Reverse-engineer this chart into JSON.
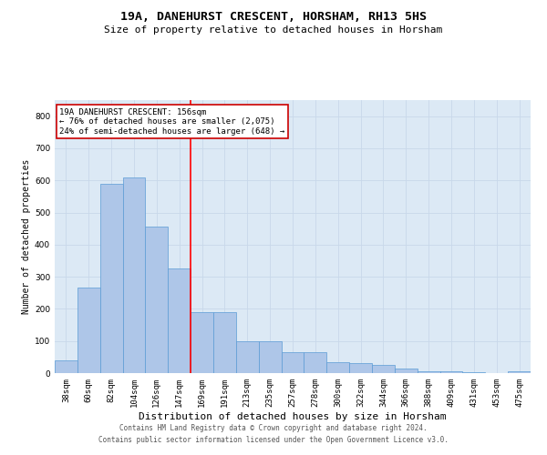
{
  "title": "19A, DANEHURST CRESCENT, HORSHAM, RH13 5HS",
  "subtitle": "Size of property relative to detached houses in Horsham",
  "xlabel": "Distribution of detached houses by size in Horsham",
  "ylabel": "Number of detached properties",
  "categories": [
    "38sqm",
    "60sqm",
    "82sqm",
    "104sqm",
    "126sqm",
    "147sqm",
    "169sqm",
    "191sqm",
    "213sqm",
    "235sqm",
    "257sqm",
    "278sqm",
    "300sqm",
    "322sqm",
    "344sqm",
    "366sqm",
    "388sqm",
    "409sqm",
    "431sqm",
    "453sqm",
    "475sqm"
  ],
  "values": [
    40,
    265,
    590,
    610,
    455,
    325,
    190,
    190,
    100,
    100,
    65,
    65,
    35,
    30,
    25,
    15,
    5,
    5,
    2,
    0,
    5
  ],
  "bar_color": "#aec6e8",
  "bar_edge_color": "#5b9bd5",
  "red_line_x": 5.5,
  "annotation_text": "19A DANEHURST CRESCENT: 156sqm\n← 76% of detached houses are smaller (2,075)\n24% of semi-detached houses are larger (648) →",
  "annotation_box_color": "#ffffff",
  "annotation_box_edge": "#cc0000",
  "ylim": [
    0,
    850
  ],
  "yticks": [
    0,
    100,
    200,
    300,
    400,
    500,
    600,
    700,
    800
  ],
  "grid_color": "#c8d8ea",
  "background_color": "#dce9f5",
  "footer_line1": "Contains HM Land Registry data © Crown copyright and database right 2024.",
  "footer_line2": "Contains public sector information licensed under the Open Government Licence v3.0.",
  "title_fontsize": 9.5,
  "subtitle_fontsize": 8,
  "xlabel_fontsize": 8,
  "ylabel_fontsize": 7,
  "tick_fontsize": 6.5,
  "annotation_fontsize": 6.5,
  "footer_fontsize": 5.5
}
